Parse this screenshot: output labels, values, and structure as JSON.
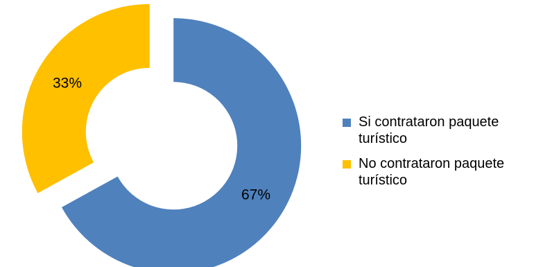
{
  "chart_data": {
    "type": "pie",
    "variant": "doughnut-exploded",
    "title": "",
    "legend_position": "right",
    "series": [
      {
        "name": "Si contrataron paquete turístico",
        "value": 67,
        "label": "67%",
        "color": "#4F81BD"
      },
      {
        "name": "No contrataron paquete turístico",
        "value": 33,
        "label": "33%",
        "color": "#FFC000"
      }
    ]
  }
}
